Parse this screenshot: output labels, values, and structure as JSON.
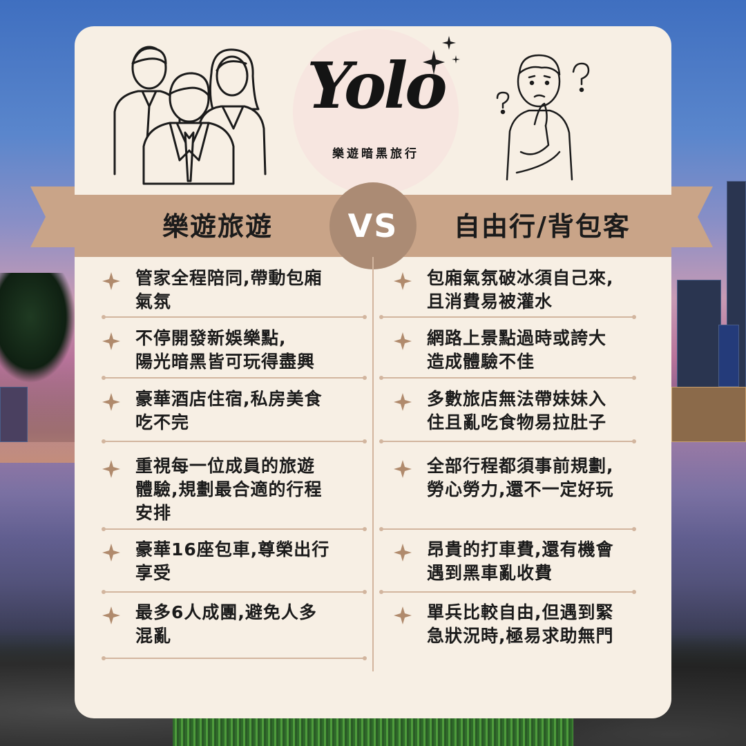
{
  "logo": {
    "text": "Yolo",
    "subtitle": "樂遊暗黑旅行"
  },
  "vs": "VS",
  "left": {
    "title": "樂遊旅遊",
    "items": [
      [
        "管家全程陪同,帶動包廂",
        "氣氛"
      ],
      [
        "不停開發新娛樂點,",
        "陽光暗黑皆可玩得盡興"
      ],
      [
        "豪華酒店住宿,私房美食",
        "吃不完"
      ],
      [
        "重視每一位成員的旅遊",
        "體驗,規劃最合適的行程",
        "安排"
      ],
      [
        "豪華16座包車,尊榮出行",
        "享受"
      ],
      [
        "最多6人成團,避免人多",
        "混亂"
      ]
    ]
  },
  "right": {
    "title": "自由行/背包客",
    "items": [
      [
        "包廂氣氛破冰須自己來,",
        "且消費易被灌水"
      ],
      [
        "網路上景點過時或誇大",
        "造成體驗不佳"
      ],
      [
        "多數旅店無法帶妹妹入",
        "住且亂吃食物易拉肚子"
      ],
      [
        "全部行程都須事前規劃,",
        "勞心勞力,還不一定好玩"
      ],
      [
        "昂貴的打車費,還有機會",
        "遇到黑車亂收費"
      ],
      [
        "單兵比較自由,但遇到緊",
        "急狀況時,極易求助無門"
      ]
    ]
  },
  "colors": {
    "accent": "#c9a488",
    "vs_circle": "#ab8b74",
    "card": "#f7efe4",
    "star": "#b08a6c"
  },
  "icons": [
    "business-team-icon",
    "sparkle-icon",
    "confused-man-icon",
    "four-point-star-icon"
  ]
}
